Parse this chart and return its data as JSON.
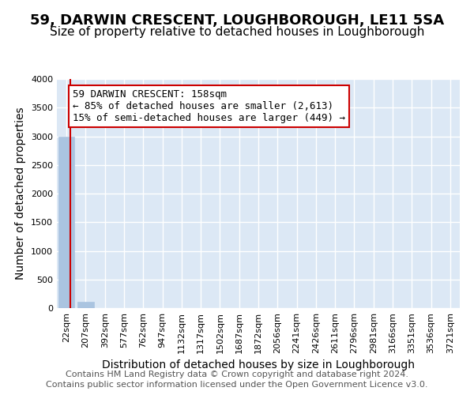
{
  "title": "59, DARWIN CRESCENT, LOUGHBOROUGH, LE11 5SA",
  "subtitle": "Size of property relative to detached houses in Loughborough",
  "xlabel": "Distribution of detached houses by size in Loughborough",
  "ylabel": "Number of detached properties",
  "bin_labels": [
    "22sqm",
    "207sqm",
    "392sqm",
    "577sqm",
    "762sqm",
    "947sqm",
    "1132sqm",
    "1317sqm",
    "1502sqm",
    "1687sqm",
    "1872sqm",
    "2056sqm",
    "2241sqm",
    "2426sqm",
    "2611sqm",
    "2796sqm",
    "2981sqm",
    "3166sqm",
    "3351sqm",
    "3536sqm",
    "3721sqm"
  ],
  "bar_heights": [
    3000,
    110,
    5,
    2,
    1,
    1,
    0,
    0,
    0,
    0,
    0,
    0,
    0,
    0,
    0,
    0,
    0,
    0,
    0,
    0,
    0
  ],
  "bar_color": "#aac4e0",
  "bar_edge_color": "#aac4e0",
  "background_color": "#dce8f5",
  "grid_color": "#ffffff",
  "marker_line_color": "#cc0000",
  "annotation_text": "59 DARWIN CRESCENT: 158sqm\n← 85% of detached houses are smaller (2,613)\n15% of semi-detached houses are larger (449) →",
  "annotation_box_color": "#ffffff",
  "annotation_box_edge_color": "#cc0000",
  "ylim": [
    0,
    4000
  ],
  "yticks": [
    0,
    500,
    1000,
    1500,
    2000,
    2500,
    3000,
    3500,
    4000
  ],
  "footer_line1": "Contains HM Land Registry data © Crown copyright and database right 2024.",
  "footer_line2": "Contains public sector information licensed under the Open Government Licence v3.0.",
  "title_fontsize": 13,
  "subtitle_fontsize": 11,
  "xlabel_fontsize": 10,
  "ylabel_fontsize": 10,
  "tick_fontsize": 8,
  "annotation_fontsize": 9,
  "footer_fontsize": 8
}
